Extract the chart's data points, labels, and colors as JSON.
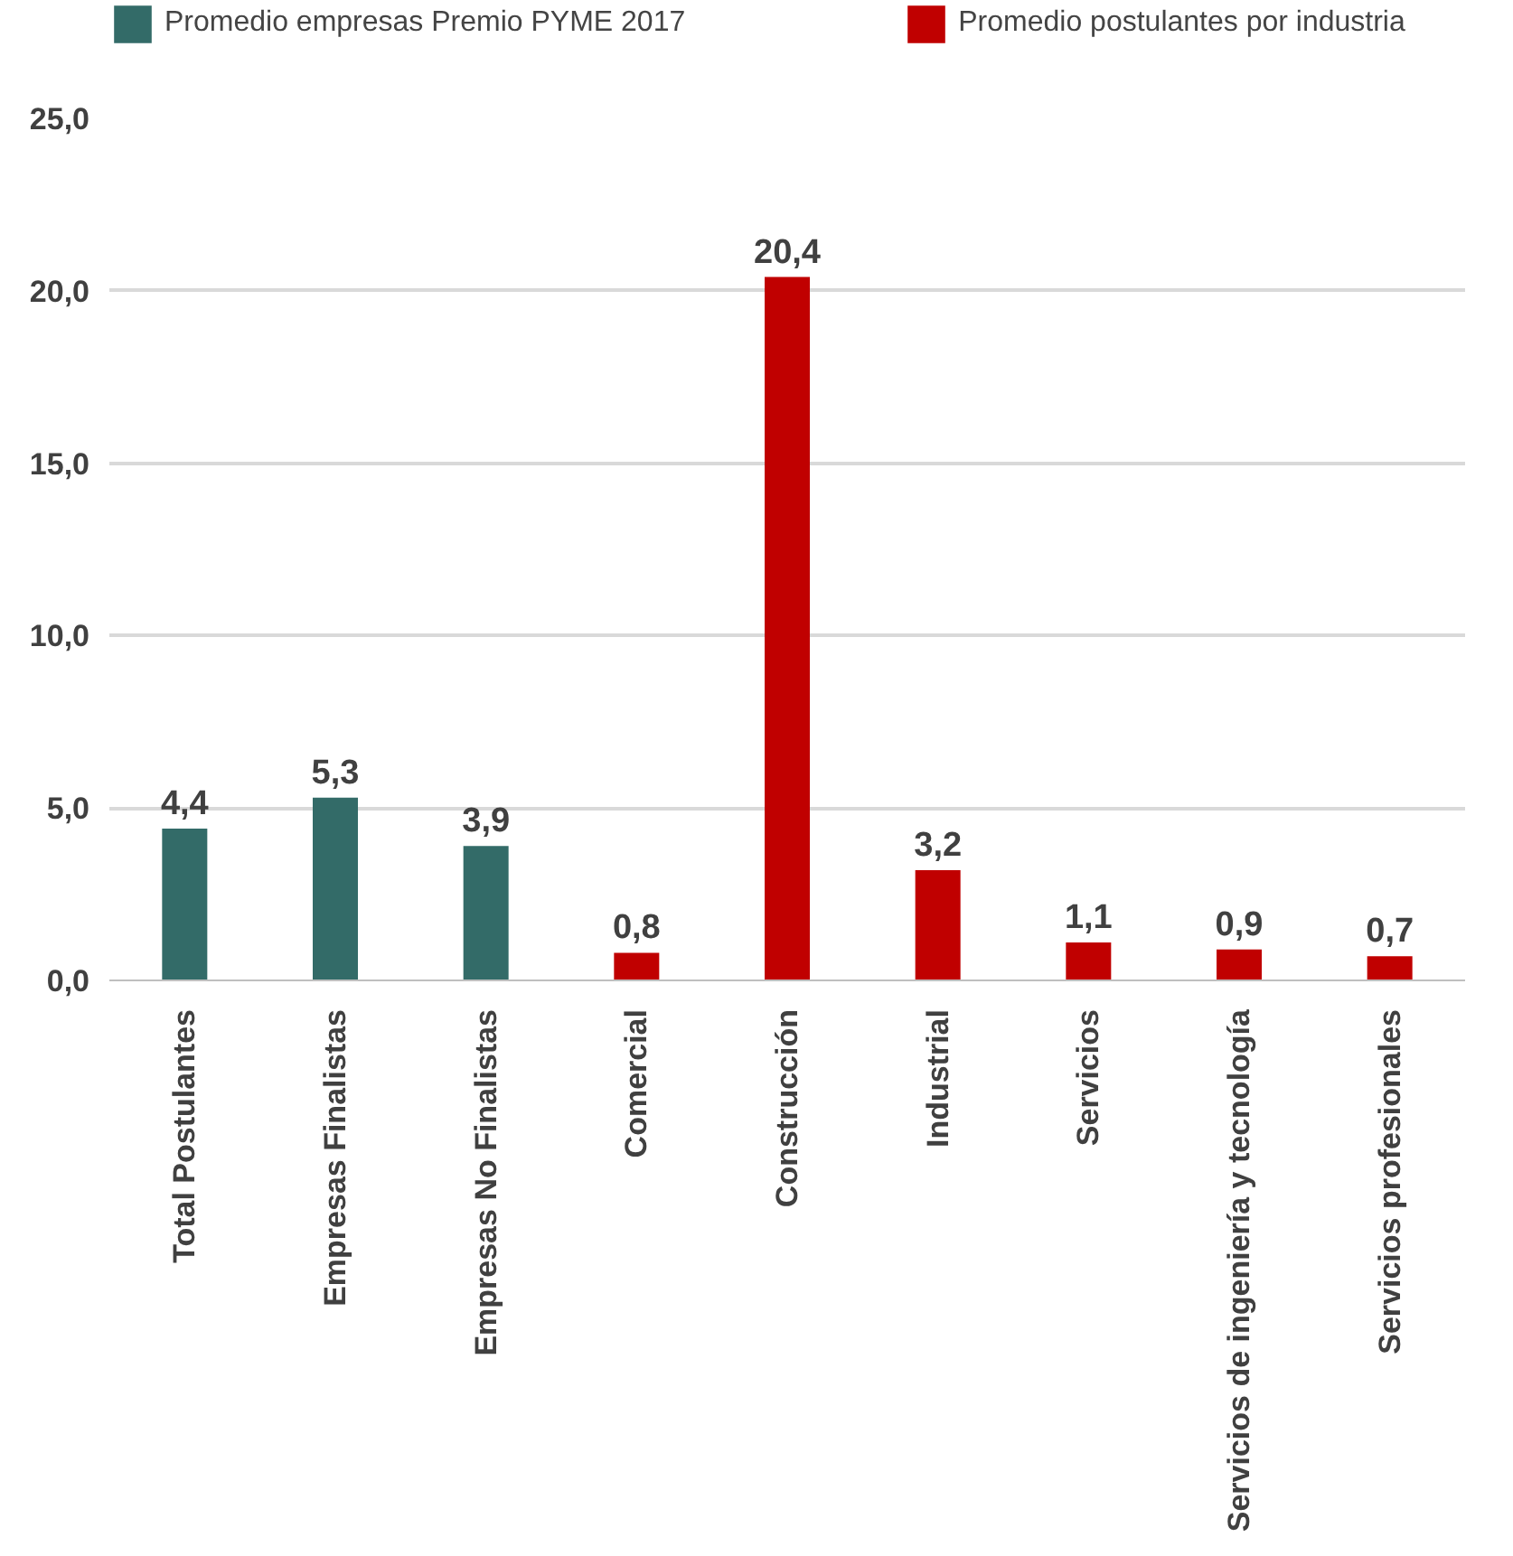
{
  "chart_data": {
    "type": "bar",
    "categories": [
      "Total Postulantes",
      "Empresas Finalistas",
      "Empresas No Finalistas",
      "Comercial",
      "Construcción",
      "Industrial",
      "Servicios",
      "Servicios de ingeniería y tecnología",
      "Servicios profesionales"
    ],
    "series": [
      {
        "name": "Promedio empresas Premio PYME 2017",
        "color": "#336b68",
        "values": [
          4.4,
          5.3,
          3.9,
          null,
          null,
          null,
          null,
          null,
          null
        ],
        "value_labels": [
          "4,4",
          "5,3",
          "3,9",
          null,
          null,
          null,
          null,
          null,
          null
        ]
      },
      {
        "name": "Promedio postulantes por industria",
        "color": "#c00000",
        "values": [
          null,
          null,
          null,
          0.8,
          20.4,
          3.2,
          1.1,
          0.9,
          0.7
        ],
        "value_labels": [
          null,
          null,
          null,
          "0,8",
          "20,4",
          "3,2",
          "1,1",
          "0,9",
          "0,7"
        ]
      }
    ],
    "ylim": [
      0,
      25
    ],
    "yticks": [
      {
        "value": 0,
        "label": "0,0"
      },
      {
        "value": 5,
        "label": "5,0"
      },
      {
        "value": 10,
        "label": "10,0"
      },
      {
        "value": 15,
        "label": "15,0"
      },
      {
        "value": 20,
        "label": "20,0"
      },
      {
        "value": 25,
        "label": "25,0"
      }
    ],
    "grid": "y",
    "legend": "top"
  }
}
